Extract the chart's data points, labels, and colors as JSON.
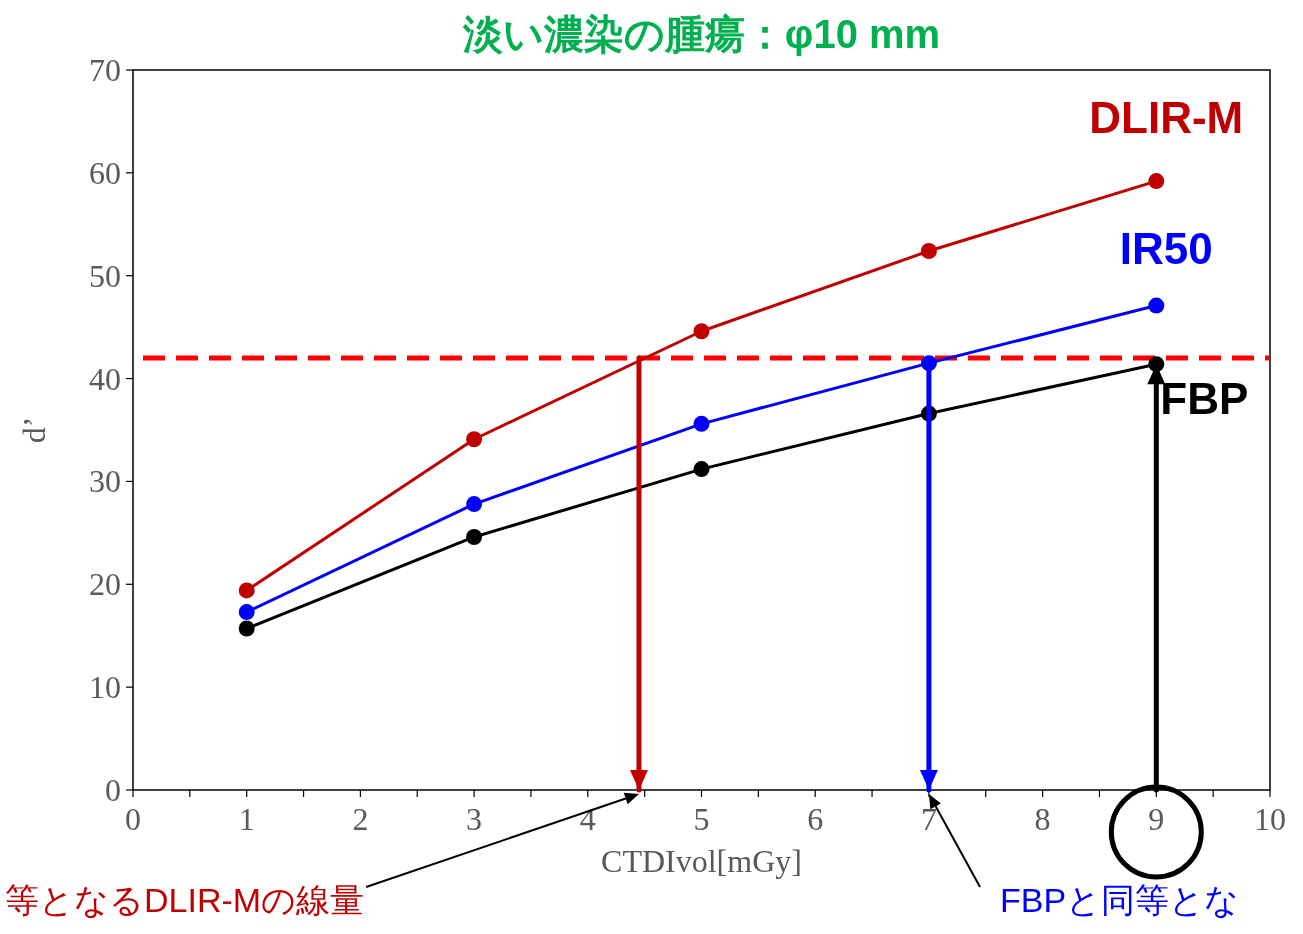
{
  "chart_data": {
    "type": "line",
    "title": "淡い濃染の腫瘍：φ10 mm",
    "xlabel": "CTDIvol[mGy]",
    "ylabel": "d’",
    "xlim": [
      0,
      10
    ],
    "ylim": [
      0,
      70
    ],
    "xticks": [
      0,
      {
        "value": 0.5,
        "label": null
      },
      1,
      {
        "value": 1.5,
        "label": null
      },
      2,
      {
        "value": 2.5,
        "label": null
      },
      3,
      {
        "value": 3.5,
        "label": null
      },
      4,
      {
        "value": 4.5,
        "label": null
      },
      5,
      {
        "value": 5.5,
        "label": null
      },
      6,
      {
        "value": 6.5,
        "label": null
      },
      7,
      {
        "value": 7.5,
        "label": null
      },
      8,
      {
        "value": 8.5,
        "label": null
      },
      9,
      {
        "value": 9.5,
        "label": null
      },
      10
    ],
    "yticks": [
      0,
      10,
      20,
      30,
      40,
      50,
      60,
      70
    ],
    "grid": false,
    "marker": "circle",
    "line_style": "solid",
    "series": [
      {
        "name": "DLIR-M",
        "color": "#c00000",
        "x": [
          1,
          3,
          5,
          7,
          9
        ],
        "values": [
          19.4,
          34.1,
          44.6,
          52.4,
          59.2
        ]
      },
      {
        "name": "IR50",
        "color": "#0000ff",
        "x": [
          1,
          3,
          5,
          7,
          9
        ],
        "values": [
          17.3,
          27.8,
          35.6,
          41.5,
          47.1
        ]
      },
      {
        "name": "FBP",
        "color": "#000000",
        "x": [
          1,
          3,
          5,
          7,
          9
        ],
        "values": [
          15.7,
          24.6,
          31.2,
          36.6,
          41.4
        ]
      },
      {
        "type": "line",
        "color": "#c00000",
        "marker": "none",
        "x": [
          4.45,
          4.45
        ],
        "values": [
          42,
          0
        ]
      },
      {
        "type": "line",
        "color": "#0000ff",
        "marker": "none",
        "x": [
          7,
          7
        ],
        "values": [
          41.5,
          0
        ]
      },
      {
        "type": "line",
        "color": "#000000",
        "marker": "none",
        "x": [
          9,
          9
        ],
        "values": [
          0,
          41.4
        ]
      }
    ],
    "ref_lines": [
      {
        "axis": "y",
        "value": 42,
        "color": "#ff0000",
        "line_style": "dashed"
      }
    ],
    "annotations": [
      "等となるDLIR-Mの線量",
      "FBPと同等とな"
    ]
  }
}
